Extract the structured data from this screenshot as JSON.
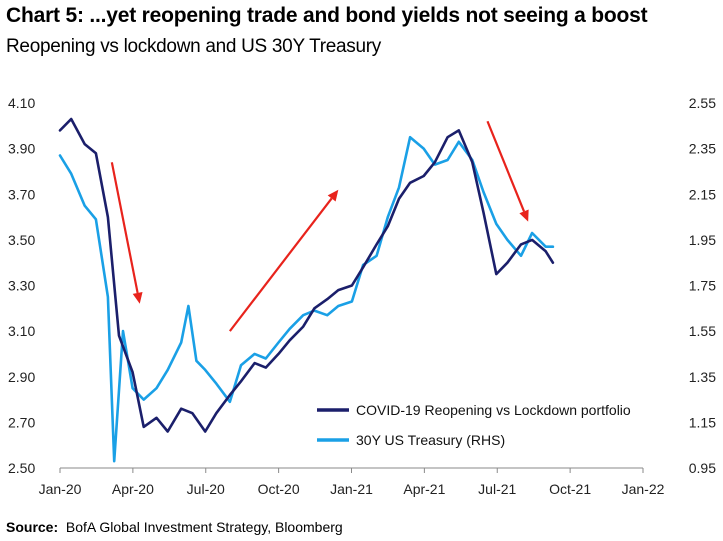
{
  "title": "Chart 5: ...yet reopening trade and bond yields not seeing a boost",
  "subtitle": "Reopening vs lockdown and US 30Y Treasury",
  "source": {
    "label": "Source:",
    "text": "BofA Global Investment Strategy, Bloomberg"
  },
  "colors": {
    "portfolio": "#1b1f6b",
    "treasury": "#1aa0e6",
    "arrow": "#e8231c"
  },
  "chart_data": {
    "type": "line",
    "x_ticks": [
      "Jan-20",
      "Apr-20",
      "Jul-20",
      "Oct-20",
      "Jan-21",
      "Apr-21",
      "Jul-21",
      "Oct-21",
      "Jan-22"
    ],
    "y_left_ticks": [
      "4.10",
      "3.90",
      "3.70",
      "3.50",
      "3.30",
      "3.10",
      "2.90",
      "2.70",
      "2.50"
    ],
    "y_right_ticks": [
      "2.55",
      "2.35",
      "2.15",
      "1.95",
      "1.75",
      "1.55",
      "1.35",
      "1.15",
      "0.95"
    ],
    "ylim_left": [
      2.5,
      4.1
    ],
    "ylim_right": [
      0.95,
      2.55
    ],
    "xlim": [
      "2020-01",
      "2022-01"
    ],
    "grid": false,
    "legend_position": "bottom-right",
    "series": [
      {
        "name": "COVID-19 Reopening vs Lockdown portfolio",
        "axis": "left",
        "points": [
          [
            "2020-01-01",
            3.98
          ],
          [
            "2020-01-15",
            4.03
          ],
          [
            "2020-02-01",
            3.92
          ],
          [
            "2020-02-15",
            3.88
          ],
          [
            "2020-03-01",
            3.6
          ],
          [
            "2020-03-15",
            3.08
          ],
          [
            "2020-04-01",
            2.92
          ],
          [
            "2020-04-15",
            2.68
          ],
          [
            "2020-05-01",
            2.72
          ],
          [
            "2020-05-15",
            2.66
          ],
          [
            "2020-06-01",
            2.76
          ],
          [
            "2020-06-15",
            2.74
          ],
          [
            "2020-07-01",
            2.66
          ],
          [
            "2020-07-15",
            2.74
          ],
          [
            "2020-08-01",
            2.82
          ],
          [
            "2020-08-15",
            2.88
          ],
          [
            "2020-09-01",
            2.96
          ],
          [
            "2020-09-15",
            2.94
          ],
          [
            "2020-10-01",
            3.0
          ],
          [
            "2020-10-15",
            3.06
          ],
          [
            "2020-11-01",
            3.12
          ],
          [
            "2020-11-15",
            3.2
          ],
          [
            "2020-12-01",
            3.24
          ],
          [
            "2020-12-15",
            3.28
          ],
          [
            "2021-01-01",
            3.3
          ],
          [
            "2021-01-15",
            3.38
          ],
          [
            "2021-02-01",
            3.48
          ],
          [
            "2021-02-15",
            3.56
          ],
          [
            "2021-03-01",
            3.68
          ],
          [
            "2021-03-15",
            3.75
          ],
          [
            "2021-04-01",
            3.78
          ],
          [
            "2021-04-15",
            3.84
          ],
          [
            "2021-05-01",
            3.95
          ],
          [
            "2021-05-15",
            3.98
          ],
          [
            "2021-06-01",
            3.84
          ],
          [
            "2021-06-15",
            3.62
          ],
          [
            "2021-07-01",
            3.35
          ],
          [
            "2021-07-15",
            3.4
          ],
          [
            "2021-08-01",
            3.48
          ],
          [
            "2021-08-15",
            3.5
          ],
          [
            "2021-09-01",
            3.45
          ],
          [
            "2021-09-10",
            3.4
          ]
        ]
      },
      {
        "name": "30Y US Treasury (RHS)",
        "axis": "right",
        "points": [
          [
            "2020-01-01",
            2.32
          ],
          [
            "2020-01-15",
            2.24
          ],
          [
            "2020-02-01",
            2.1
          ],
          [
            "2020-02-15",
            2.04
          ],
          [
            "2020-03-01",
            1.7
          ],
          [
            "2020-03-09",
            0.98
          ],
          [
            "2020-03-20",
            1.55
          ],
          [
            "2020-04-01",
            1.3
          ],
          [
            "2020-04-15",
            1.25
          ],
          [
            "2020-05-01",
            1.3
          ],
          [
            "2020-05-15",
            1.38
          ],
          [
            "2020-06-01",
            1.5
          ],
          [
            "2020-06-10",
            1.66
          ],
          [
            "2020-06-20",
            1.42
          ],
          [
            "2020-07-01",
            1.38
          ],
          [
            "2020-07-15",
            1.32
          ],
          [
            "2020-08-01",
            1.24
          ],
          [
            "2020-08-15",
            1.4
          ],
          [
            "2020-09-01",
            1.45
          ],
          [
            "2020-09-15",
            1.43
          ],
          [
            "2020-10-01",
            1.5
          ],
          [
            "2020-10-15",
            1.56
          ],
          [
            "2020-11-01",
            1.62
          ],
          [
            "2020-11-15",
            1.64
          ],
          [
            "2020-12-01",
            1.62
          ],
          [
            "2020-12-15",
            1.66
          ],
          [
            "2021-01-01",
            1.68
          ],
          [
            "2021-01-15",
            1.84
          ],
          [
            "2021-02-01",
            1.88
          ],
          [
            "2021-02-15",
            2.05
          ],
          [
            "2021-03-01",
            2.18
          ],
          [
            "2021-03-15",
            2.4
          ],
          [
            "2021-04-01",
            2.35
          ],
          [
            "2021-04-15",
            2.28
          ],
          [
            "2021-05-01",
            2.3
          ],
          [
            "2021-05-15",
            2.38
          ],
          [
            "2021-06-01",
            2.3
          ],
          [
            "2021-06-15",
            2.16
          ],
          [
            "2021-07-01",
            2.02
          ],
          [
            "2021-07-15",
            1.95
          ],
          [
            "2021-08-01",
            1.88
          ],
          [
            "2021-08-15",
            1.98
          ],
          [
            "2021-09-01",
            1.92
          ],
          [
            "2021-09-10",
            1.92
          ]
        ]
      }
    ],
    "annotations": [
      {
        "type": "arrow",
        "from": [
          "2020-03-06",
          3.84
        ],
        "to": [
          "2020-04-10",
          3.22
        ]
      },
      {
        "type": "arrow",
        "from": [
          "2020-08-01",
          3.1
        ],
        "to": [
          "2020-12-15",
          3.72
        ]
      },
      {
        "type": "arrow",
        "from": [
          "2021-06-20",
          4.02
        ],
        "to": [
          "2021-08-10",
          3.58
        ]
      }
    ]
  }
}
